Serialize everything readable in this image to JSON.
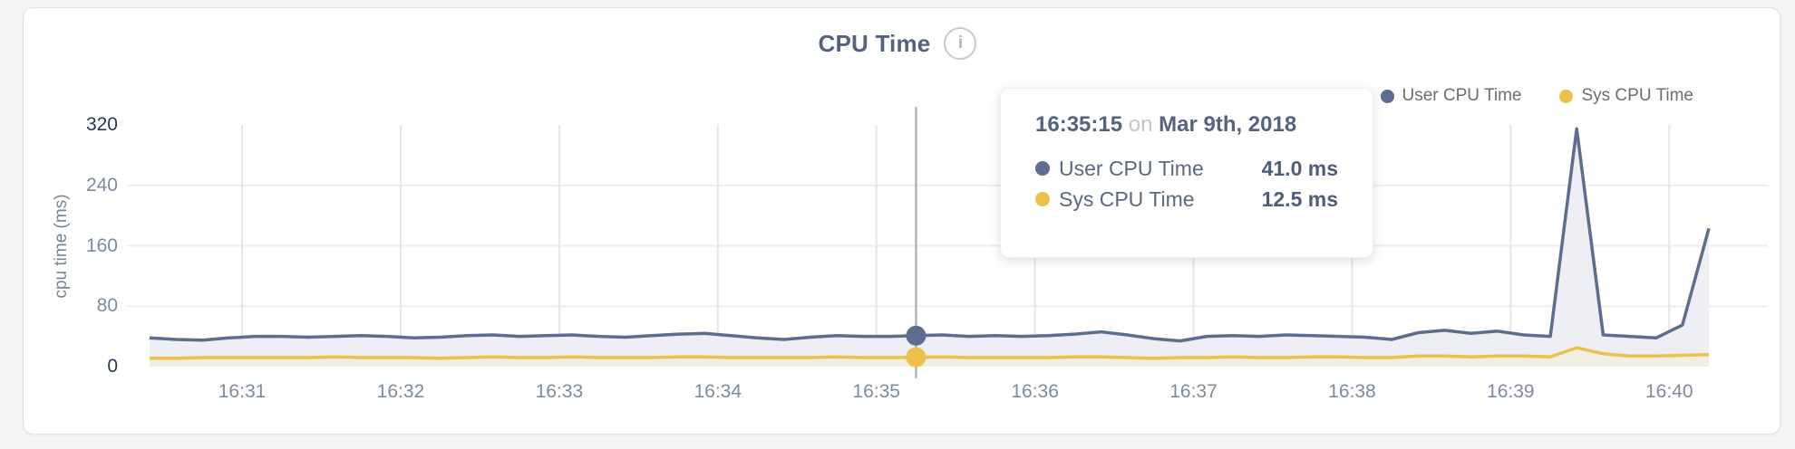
{
  "header": {
    "title": "CPU Time",
    "info_icon_glyph": "i"
  },
  "legend": {
    "items": [
      {
        "label": "User CPU Time",
        "color": "#5c6d8e"
      },
      {
        "label": "Sys CPU Time",
        "color": "#edc24f"
      }
    ]
  },
  "tooltip": {
    "time": "16:35:15",
    "conjunction": "on",
    "date": "Mar 9th, 2018",
    "rows": [
      {
        "label": "User CPU Time",
        "value": "41.0 ms",
        "color": "#5c6d8e"
      },
      {
        "label": "Sys CPU Time",
        "value": "12.5 ms",
        "color": "#edc24f"
      }
    ]
  },
  "chart_data": {
    "type": "area",
    "title": "CPU Time",
    "xlabel": "",
    "ylabel": "cpu time (ms)",
    "ylim": [
      0,
      320
    ],
    "yticks": [
      0,
      80,
      160,
      240,
      320
    ],
    "yticks_emphasized": [
      0,
      320
    ],
    "grid": "on",
    "legend_position": "top-right",
    "x_start_time": "16:30:25",
    "x_step_seconds": 10,
    "x_total_seconds": 590,
    "xticks": [
      {
        "label": "16:31",
        "offset_s": 35
      },
      {
        "label": "16:32",
        "offset_s": 95
      },
      {
        "label": "16:33",
        "offset_s": 155
      },
      {
        "label": "16:34",
        "offset_s": 215
      },
      {
        "label": "16:35",
        "offset_s": 275
      },
      {
        "label": "16:36",
        "offset_s": 335
      },
      {
        "label": "16:37",
        "offset_s": 395
      },
      {
        "label": "16:38",
        "offset_s": 455
      },
      {
        "label": "16:39",
        "offset_s": 515
      },
      {
        "label": "16:40",
        "offset_s": 575
      }
    ],
    "series": [
      {
        "name": "User CPU Time",
        "color": "#5c6d8e",
        "fill": "#edeff4",
        "values": [
          38,
          36,
          35,
          38,
          40,
          40,
          39,
          40,
          41,
          40,
          38,
          39,
          41,
          42,
          40,
          41,
          42,
          40,
          39,
          41,
          43,
          44,
          41,
          38,
          36,
          39,
          41,
          40,
          40,
          41,
          42,
          40,
          41,
          40,
          41,
          43,
          46,
          42,
          37,
          34,
          40,
          41,
          40,
          42,
          41,
          40,
          39,
          36,
          45,
          48,
          44,
          47,
          42,
          40,
          315,
          42,
          40,
          38,
          55,
          183
        ]
      },
      {
        "name": "Sys CPU Time",
        "color": "#ecc04b",
        "fill": "#f1eee2",
        "values": [
          11,
          11,
          12,
          12,
          12,
          12,
          12,
          13,
          12,
          12,
          12,
          11,
          12,
          13,
          12,
          12,
          13,
          12,
          12,
          12,
          13,
          13,
          12,
          12,
          12,
          12,
          13,
          12,
          12,
          12.5,
          13,
          12,
          12,
          12,
          12,
          13,
          13,
          12,
          11,
          12,
          12,
          13,
          12,
          12,
          13,
          13,
          12,
          12,
          14,
          14,
          13,
          14,
          14,
          13,
          25,
          17,
          14,
          14,
          15,
          16
        ]
      }
    ],
    "crosshair": {
      "index": 29,
      "time": "16:35:15",
      "user_value_ms": 41.0,
      "sys_value_ms": 12.5
    }
  }
}
